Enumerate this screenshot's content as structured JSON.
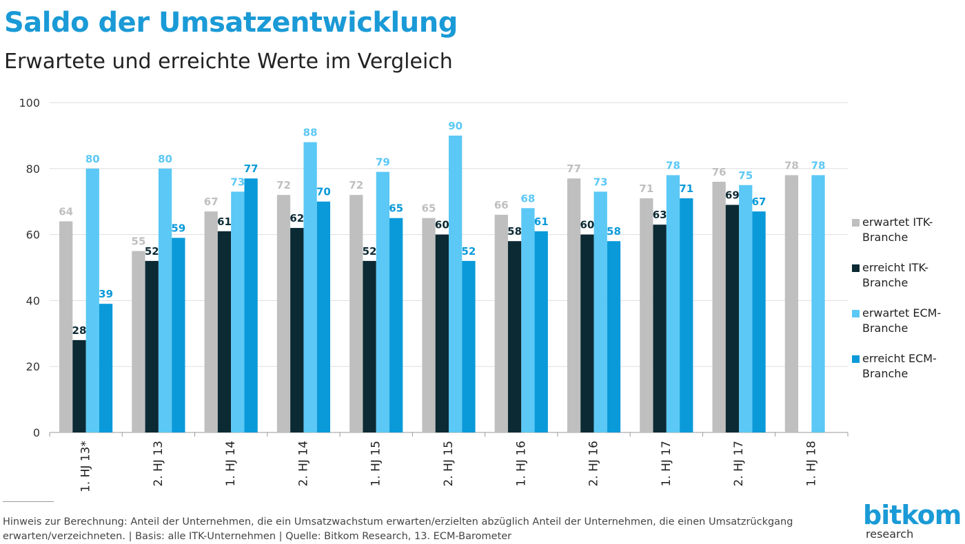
{
  "chart_data": {
    "type": "bar",
    "title": "Saldo der Umsatzentwicklung",
    "subtitle": "Erwartete und erreichte Werte im Vergleich",
    "categories": [
      "1. HJ 13*",
      "2. HJ 13",
      "1. HJ 14",
      "2. HJ 14",
      "1. HJ 15",
      "2. HJ 15",
      "1. HJ 16",
      "2. HJ 16",
      "1. HJ 17",
      "2. HJ 17",
      "1. HJ 18"
    ],
    "series": [
      {
        "name": "erwartet ITK-Branche",
        "color": "#bfbfbf",
        "values": [
          64,
          55,
          67,
          72,
          72,
          65,
          66,
          77,
          71,
          76,
          78
        ]
      },
      {
        "name": "erreicht ITK-Branche",
        "color": "#0c2a33",
        "values": [
          28,
          52,
          61,
          62,
          52,
          60,
          58,
          60,
          63,
          69,
          null
        ]
      },
      {
        "name": "erwartet ECM-Branche",
        "color": "#5bc8f5",
        "values": [
          80,
          80,
          73,
          88,
          79,
          90,
          68,
          73,
          78,
          75,
          78
        ]
      },
      {
        "name": "erreicht ECM-Branche",
        "color": "#0a9ad9",
        "values": [
          39,
          59,
          77,
          70,
          65,
          52,
          61,
          58,
          71,
          67,
          null
        ]
      }
    ],
    "ylim": [
      0,
      100
    ],
    "yticks": [
      0,
      20,
      40,
      60,
      80,
      100
    ],
    "grid": true,
    "legend": "right",
    "footnote": "Hinweis zur Berechnung: Anteil der Unternehmen, die ein Umsatzwachstum erwarten/erzielten abzüglich Anteil der Unternehmen, die einen Umsatzrückgang erwarten/verzeichneten. | Basis: alle ITK-Unternehmen | Quelle: Bitkom Research, 13. ECM-Barometer",
    "logo": "bitkom",
    "logo_subtitle": "research"
  }
}
